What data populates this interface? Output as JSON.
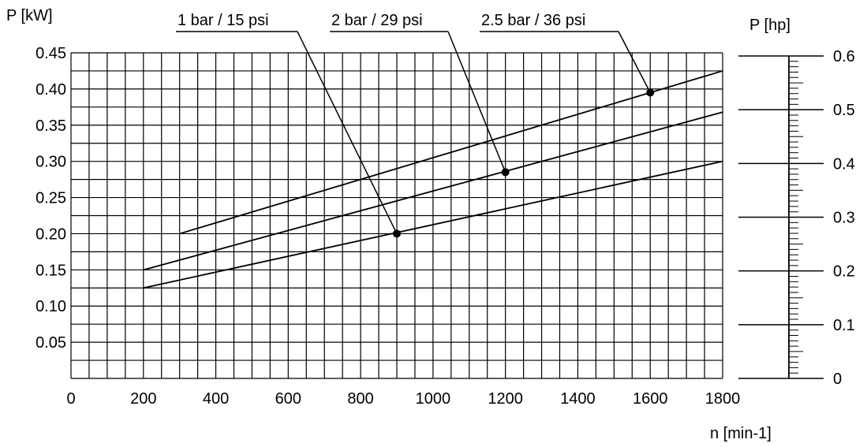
{
  "chart_data": {
    "type": "line",
    "title": "",
    "xlabel": "n [min-1]",
    "ylabel": "P [kW]",
    "y2label": "P [hp]",
    "xlim": [
      0,
      1800
    ],
    "ylim": [
      0,
      0.45
    ],
    "y2lim": [
      0,
      0.6
    ],
    "grid": true,
    "x_ticks": [
      "0",
      "200",
      "400",
      "600",
      "800",
      "1000",
      "1200",
      "1400",
      "1600",
      "1800"
    ],
    "y_ticks": [
      "0.05",
      "0.10",
      "0.15",
      "0.20",
      "0.25",
      "0.30",
      "0.35",
      "0.40",
      "0.45"
    ],
    "y2_ticks": [
      "0",
      "0.1",
      "0.2",
      "0.3",
      "0.4",
      "0.5",
      "0.6"
    ],
    "series": [
      {
        "name": "1 bar / 15 psi",
        "x": [
          200,
          1800
        ],
        "y": [
          0.125,
          0.3
        ],
        "marker": {
          "x": 900,
          "y": 0.2
        }
      },
      {
        "name": "2 bar / 29 psi",
        "x": [
          200,
          1800
        ],
        "y": [
          0.15,
          0.368
        ],
        "marker": {
          "x": 1200,
          "y": 0.285
        }
      },
      {
        "name": "2.5 bar / 36 psi",
        "x": [
          300,
          1800
        ],
        "y": [
          0.2,
          0.425
        ],
        "marker": {
          "x": 1600,
          "y": 0.395
        }
      }
    ],
    "line_color": "#000000"
  }
}
